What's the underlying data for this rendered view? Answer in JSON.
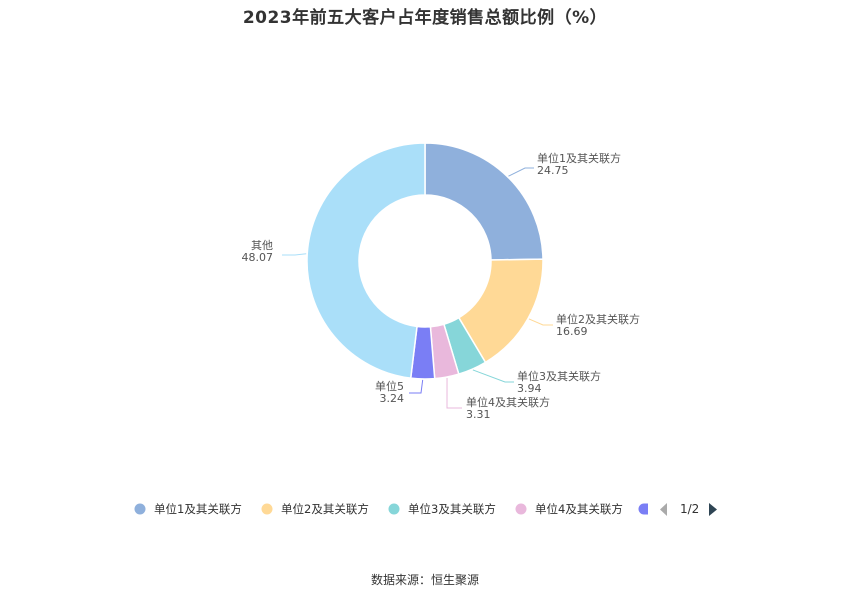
{
  "title": "2023年前五大客户占年度销售总额比例（%）",
  "source": "数据来源：恒生聚源",
  "legend": {
    "page_indicator": "1/2",
    "visible_series_count": 5
  },
  "chart_data": {
    "type": "pie",
    "title": "2023年前五大客户占年度销售总额比例（%）",
    "donut": true,
    "legend_position": "bottom",
    "series": [
      {
        "name": "单位1及其关联方",
        "value": 24.75,
        "value_label": "24.75",
        "color": "#8fb0dc"
      },
      {
        "name": "单位2及其关联方",
        "value": 16.69,
        "value_label": "16.69",
        "color": "#ffd996"
      },
      {
        "name": "单位3及其关联方",
        "value": 3.94,
        "value_label": "3.94",
        "color": "#86d6d9"
      },
      {
        "name": "单位4及其关联方",
        "value": 3.31,
        "value_label": "3.31",
        "color": "#e9b8dc"
      },
      {
        "name": "单位5",
        "value": 3.24,
        "value_label": "3.24",
        "color": "#7a7ef5"
      },
      {
        "name": "其他",
        "value": 48.07,
        "value_label": "48.07",
        "color": "#aadff9"
      }
    ]
  }
}
